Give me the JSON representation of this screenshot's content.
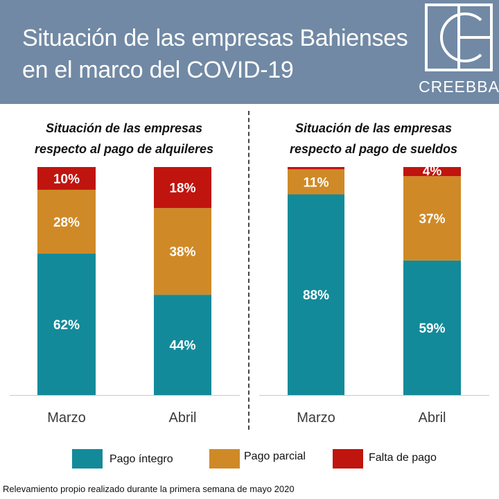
{
  "header": {
    "title_line1": "Situación de las empresas Bahienses",
    "title_line2": "en el marco del COVID-19",
    "logo_text": "CREEBBA",
    "background": "#7189a4"
  },
  "colors": {
    "pago_integro": "#138a9a",
    "pago_parcial": "#cf8a27",
    "falta_de_pago": "#c0140f"
  },
  "chart_data": [
    {
      "type": "bar",
      "stacked": true,
      "title_line1": "Situación de las empresas",
      "title_line2": "respecto al pago de alquileres",
      "categories": [
        "Marzo",
        "Abril"
      ],
      "series": [
        {
          "name": "Pago íntegro",
          "values": [
            62,
            44
          ],
          "labels": [
            "62%",
            "44%"
          ]
        },
        {
          "name": "Pago parcial",
          "values": [
            28,
            38
          ],
          "labels": [
            "28%",
            "38%"
          ]
        },
        {
          "name": "Falta de pago",
          "values": [
            10,
            18
          ],
          "labels": [
            "10%",
            "18%"
          ]
        }
      ],
      "ylim": [
        0,
        100
      ]
    },
    {
      "type": "bar",
      "stacked": true,
      "title_line1": "Situación de las empresas",
      "title_line2": "respecto al pago de sueldos",
      "categories": [
        "Marzo",
        "Abril"
      ],
      "series": [
        {
          "name": "Pago íntegro",
          "values": [
            88,
            59
          ],
          "labels": [
            "88%",
            "59%"
          ]
        },
        {
          "name": "Pago parcial",
          "values": [
            11,
            37
          ],
          "labels": [
            "11%",
            "37%"
          ]
        },
        {
          "name": "Falta de pago",
          "values": [
            1,
            4
          ],
          "labels": [
            "",
            "4%"
          ]
        }
      ],
      "ylim": [
        0,
        100
      ]
    }
  ],
  "legend": {
    "items": [
      "Pago íntegro",
      "Pago parcial",
      "Falta de pago"
    ],
    "placement": "bottom"
  },
  "footnote": "Relevamiento propio realizado durante la primera semana de mayo 2020"
}
